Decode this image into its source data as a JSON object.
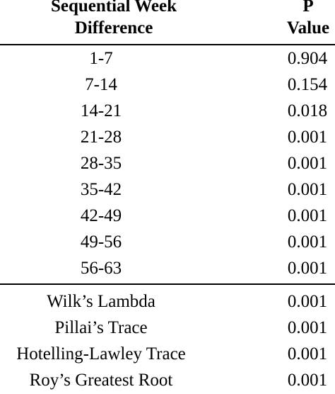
{
  "header": {
    "col1_line1": "Sequential Week",
    "col1_line2": "Difference",
    "col2_line1": "P",
    "col2_line2": "Value"
  },
  "week_rows": [
    {
      "difference": "1-7",
      "p_value": "0.904"
    },
    {
      "difference": "7-14",
      "p_value": "0.154"
    },
    {
      "difference": "14-21",
      "p_value": "0.018"
    },
    {
      "difference": "21-28",
      "p_value": "0.001"
    },
    {
      "difference": "28-35",
      "p_value": "0.001"
    },
    {
      "difference": "35-42",
      "p_value": "0.001"
    },
    {
      "difference": "42-49",
      "p_value": "0.001"
    },
    {
      "difference": "49-56",
      "p_value": "0.001"
    },
    {
      "difference": "56-63",
      "p_value": "0.001"
    }
  ],
  "test_rows": [
    {
      "test": "Wilk’s Lambda",
      "p_value": "0.001"
    },
    {
      "test": "Pillai’s Trace",
      "p_value": "0.001"
    },
    {
      "test": "Hotelling-Lawley Trace",
      "p_value": "0.001"
    },
    {
      "test": "Roy’s Greatest Root",
      "p_value": "0.001"
    }
  ]
}
